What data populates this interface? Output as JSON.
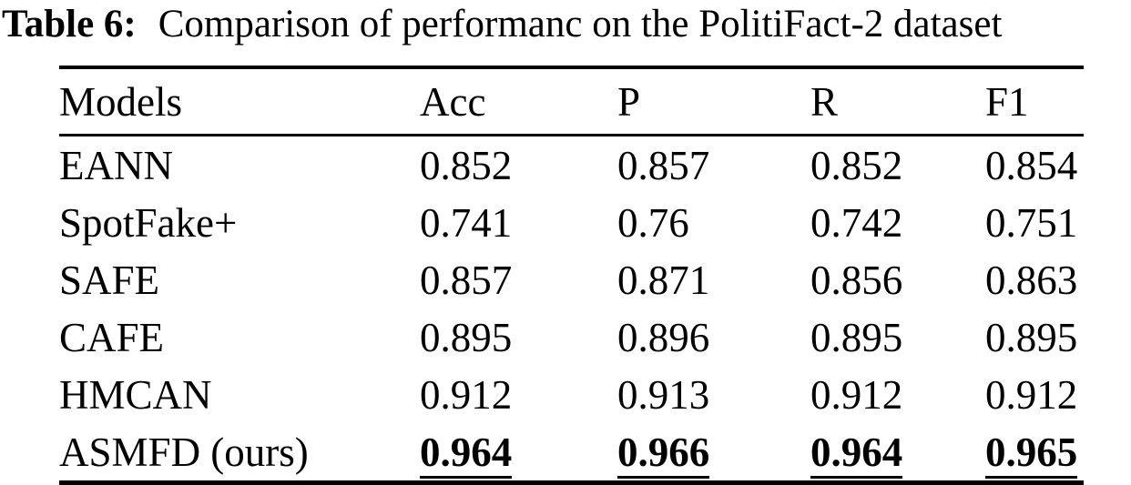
{
  "page": {
    "background_color": "#ffffff",
    "text_color": "#000000"
  },
  "caption": {
    "label": "Table 6:",
    "text": "Comparison of performanc on the PolitiFact-2 dataset"
  },
  "table": {
    "headers": [
      "Models",
      "Acc",
      "P",
      "R",
      "F1"
    ],
    "rows": [
      {
        "model": "EANN",
        "acc": "0.852",
        "p": "0.857",
        "r": "0.852",
        "f1": "0.854",
        "best": false
      },
      {
        "model": "SpotFake+",
        "acc": "0.741",
        "p": "0.76",
        "r": "0.742",
        "f1": "0.751",
        "best": false
      },
      {
        "model": "SAFE",
        "acc": "0.857",
        "p": "0.871",
        "r": "0.856",
        "f1": "0.863",
        "best": false
      },
      {
        "model": "CAFE",
        "acc": "0.895",
        "p": "0.896",
        "r": "0.895",
        "f1": "0.895",
        "best": false
      },
      {
        "model": "HMCAN",
        "acc": "0.912",
        "p": "0.913",
        "r": "0.912",
        "f1": "0.912",
        "best": false
      },
      {
        "model": "ASMFD (ours)",
        "acc": "0.964",
        "p": "0.966",
        "r": "0.964",
        "f1": "0.965",
        "best": true
      }
    ]
  }
}
